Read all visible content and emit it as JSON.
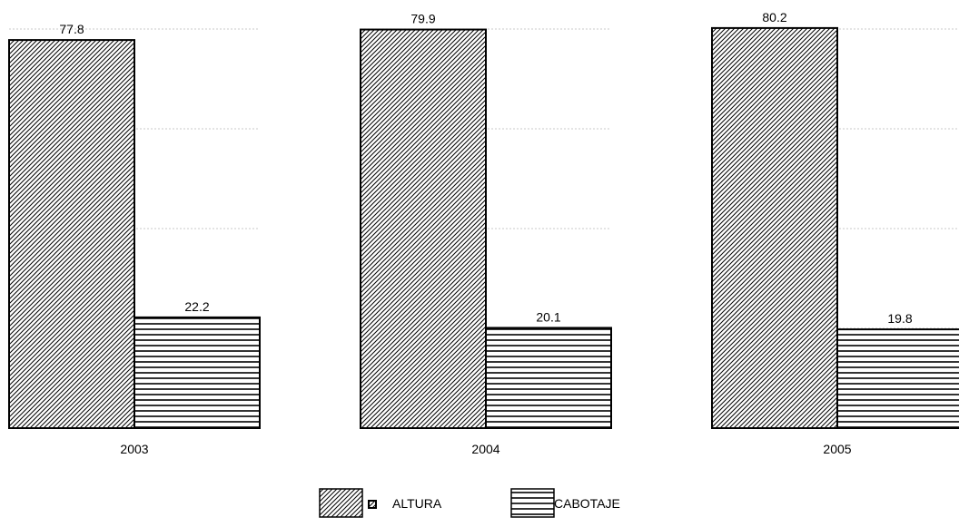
{
  "chart_data": {
    "type": "bar",
    "categories": [
      "2003",
      "2004",
      "2005"
    ],
    "series": [
      {
        "name": "ALTURA",
        "values": [
          77.8,
          79.9,
          80.2
        ],
        "pattern": "diagonal-hatch"
      },
      {
        "name": "CABOTAJE",
        "values": [
          22.2,
          20.1,
          19.8
        ],
        "pattern": "horizontal-lines"
      }
    ],
    "data_labels": [
      [
        "77.8",
        "79.9",
        "80.2"
      ],
      [
        "22.2",
        "20.1",
        "19.8"
      ]
    ],
    "ylim": [
      0,
      100
    ],
    "grid": true,
    "legend_position": "bottom-center",
    "colors": {
      "stroke": "#000000",
      "background": "#ffffff",
      "grid": "#c8c8c8"
    }
  }
}
